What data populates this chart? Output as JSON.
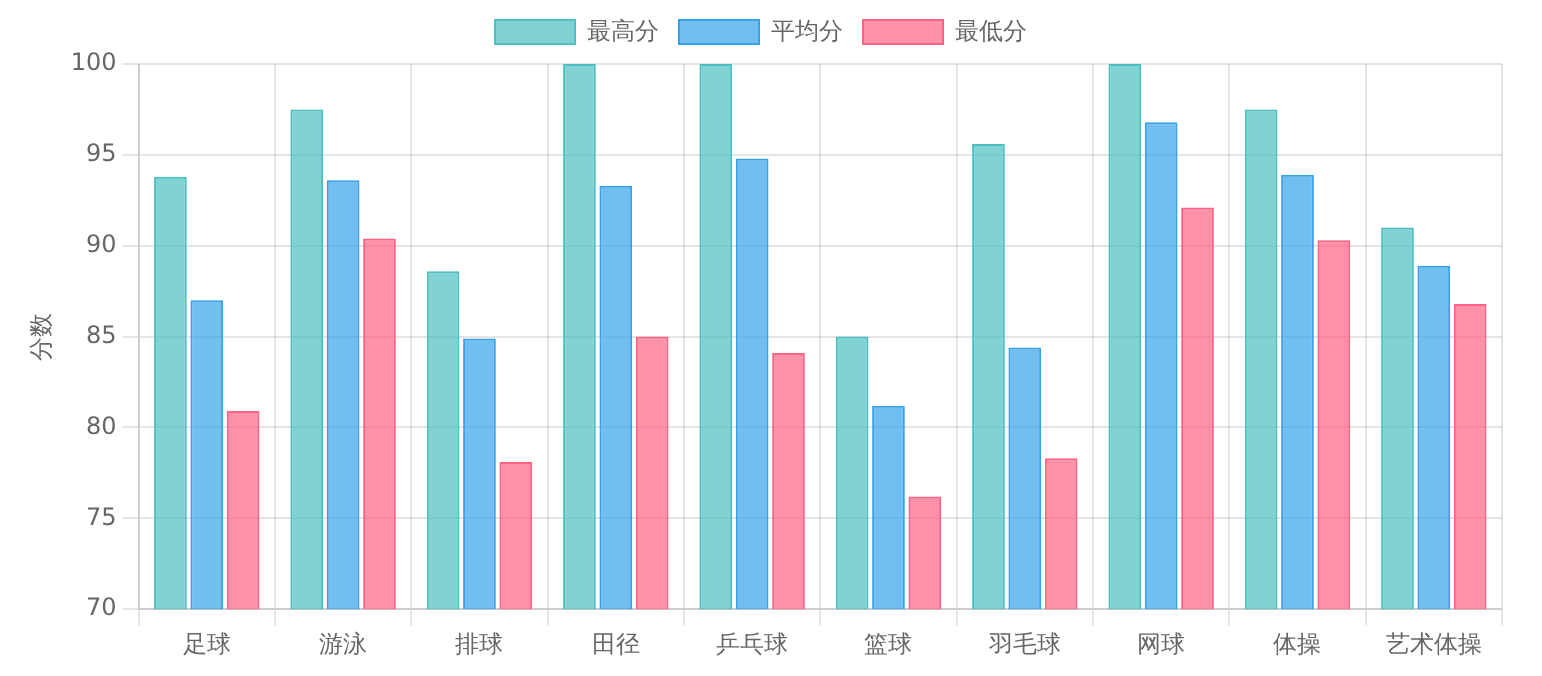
{
  "chart_data": {
    "type": "bar",
    "ylabel": "分数",
    "categories": [
      "足球",
      "游泳",
      "排球",
      "田径",
      "乒乓球",
      "篮球",
      "羽毛球",
      "网球",
      "体操",
      "艺术体操"
    ],
    "series": [
      {
        "name": "最高分",
        "color": "#4bc0c0",
        "values": [
          93.8,
          97.5,
          88.6,
          100,
          100,
          85,
          95.6,
          100,
          97.5,
          91
        ]
      },
      {
        "name": "平均分",
        "color": "#36a2eb",
        "values": [
          87,
          93.6,
          84.9,
          93.3,
          94.8,
          81.2,
          84.4,
          96.8,
          93.9,
          88.9
        ]
      },
      {
        "name": "最低分",
        "color": "#ff6384",
        "values": [
          80.9,
          90.4,
          78.1,
          85,
          84.1,
          76.2,
          78.3,
          92.1,
          90.3,
          86.8
        ]
      }
    ],
    "ylim": [
      70,
      100
    ],
    "yticks": [
      70,
      75,
      80,
      85,
      90,
      95,
      100
    ],
    "grid": true,
    "legend": "top"
  }
}
